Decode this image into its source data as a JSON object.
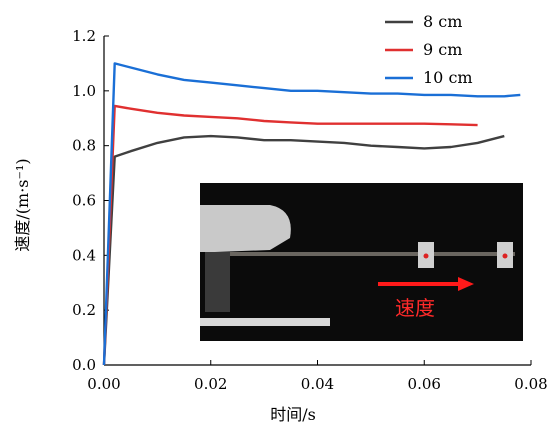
{
  "chart_data": {
    "type": "line",
    "xlabel": "时间/s",
    "ylabel": "速度/(m·s⁻¹)",
    "xlim": [
      0,
      0.08
    ],
    "ylim": [
      0,
      1.2
    ],
    "x_ticks": [
      "0.00",
      "0.02",
      "0.04",
      "0.06",
      "0.08"
    ],
    "y_ticks": [
      "0.0",
      "0.2",
      "0.4",
      "0.6",
      "0.8",
      "1.0",
      "1.2"
    ],
    "legend_position": "top-right",
    "series": [
      {
        "name": "8 cm",
        "color": "#404040",
        "points": [
          [
            0,
            0
          ],
          [
            0.002,
            0.76
          ],
          [
            0.005,
            0.78
          ],
          [
            0.01,
            0.81
          ],
          [
            0.015,
            0.83
          ],
          [
            0.02,
            0.835
          ],
          [
            0.025,
            0.83
          ],
          [
            0.03,
            0.82
          ],
          [
            0.035,
            0.82
          ],
          [
            0.04,
            0.815
          ],
          [
            0.045,
            0.81
          ],
          [
            0.05,
            0.8
          ],
          [
            0.055,
            0.795
          ],
          [
            0.06,
            0.79
          ],
          [
            0.065,
            0.795
          ],
          [
            0.07,
            0.81
          ],
          [
            0.075,
            0.835
          ]
        ]
      },
      {
        "name": "9 cm",
        "color": "#e03030",
        "points": [
          [
            0,
            0
          ],
          [
            0.002,
            0.945
          ],
          [
            0.005,
            0.935
          ],
          [
            0.01,
            0.92
          ],
          [
            0.015,
            0.91
          ],
          [
            0.02,
            0.905
          ],
          [
            0.025,
            0.9
          ],
          [
            0.03,
            0.89
          ],
          [
            0.035,
            0.885
          ],
          [
            0.04,
            0.88
          ],
          [
            0.045,
            0.88
          ],
          [
            0.05,
            0.88
          ],
          [
            0.055,
            0.88
          ],
          [
            0.06,
            0.88
          ],
          [
            0.065,
            0.878
          ],
          [
            0.07,
            0.875
          ]
        ]
      },
      {
        "name": "10 cm",
        "color": "#1a6fd6",
        "points": [
          [
            0,
            0
          ],
          [
            0.002,
            1.1
          ],
          [
            0.005,
            1.085
          ],
          [
            0.01,
            1.06
          ],
          [
            0.015,
            1.04
          ],
          [
            0.02,
            1.03
          ],
          [
            0.025,
            1.02
          ],
          [
            0.03,
            1.01
          ],
          [
            0.035,
            1.0
          ],
          [
            0.04,
            1.0
          ],
          [
            0.045,
            0.995
          ],
          [
            0.05,
            0.99
          ],
          [
            0.055,
            0.99
          ],
          [
            0.06,
            0.985
          ],
          [
            0.065,
            0.985
          ],
          [
            0.07,
            0.98
          ],
          [
            0.075,
            0.98
          ],
          [
            0.078,
            0.985
          ]
        ]
      }
    ],
    "inset": {
      "label": "速度",
      "arrow_color": "#ff1a1a"
    }
  }
}
